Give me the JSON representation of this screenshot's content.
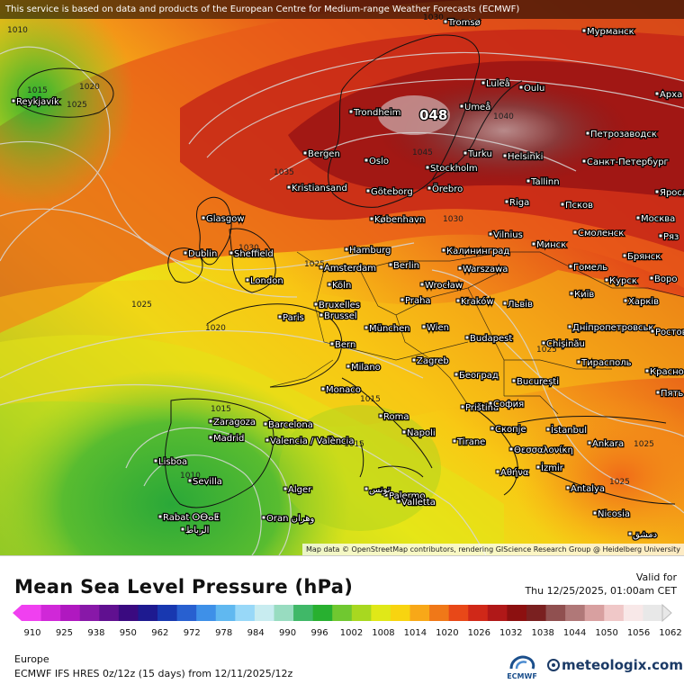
{
  "disclaimer": "This service is based on data and products of the European Centre for Medium-range Weather Forecasts (ECMWF)",
  "attribution": "Map data © OpenStreetMap contributors, rendering GIScience Research Group @ Heidelberg University",
  "legend": {
    "title": "Mean Sea Level Pressure (hPa)",
    "valid_label": "Valid for",
    "valid_time": "Thu 12/25/2025, 01:00am CET",
    "ticks": [
      "910",
      "925",
      "938",
      "950",
      "962",
      "972",
      "978",
      "984",
      "990",
      "996",
      "1002",
      "1008",
      "1014",
      "1020",
      "1026",
      "1032",
      "1038",
      "1044",
      "1050",
      "1056",
      "1062"
    ],
    "colors": [
      "#f040f0",
      "#d028d8",
      "#b018c0",
      "#8818a8",
      "#601090",
      "#3a0a80",
      "#1e1a90",
      "#1838b0",
      "#2860d0",
      "#3e90e8",
      "#60b8f0",
      "#98d8f8",
      "#c8ecf0",
      "#98dcc0",
      "#40b868",
      "#28b030",
      "#70c830",
      "#a8d820",
      "#e0e818",
      "#f8d410",
      "#f8a818",
      "#f07818",
      "#e84818",
      "#d02818",
      "#b01818",
      "#8c1010",
      "#7a2020",
      "#905050",
      "#b07878",
      "#d8a0a0",
      "#f0c8c8",
      "#f8e8e8",
      "#e8e8e8"
    ]
  },
  "footer": {
    "region": "Europe",
    "model": "ECMWF IFS HRES 0z/12z (15 days) from 12/11/2025/12z",
    "ecmwf_logo_text": "ECMWF",
    "brand": "meteologix.com",
    "brand_icon": "meteologix-logo-icon"
  },
  "map": {
    "high_label": "048",
    "isobar_labels": [
      {
        "text": "1010",
        "pos": "top-left"
      },
      {
        "text": "1015",
        "pos": "iceland"
      },
      {
        "text": "1020",
        "pos": "iceland"
      },
      {
        "text": "1025",
        "pos": "reykjavik"
      },
      {
        "text": "1030",
        "pos": "top"
      },
      {
        "text": "1035",
        "pos": "north-sea"
      },
      {
        "text": "1045",
        "pos": "sweden"
      },
      {
        "text": "1040",
        "pos": "helsinki"
      },
      {
        "text": "1030",
        "pos": "kobenhavn"
      },
      {
        "text": "1030",
        "pos": "britain"
      },
      {
        "text": "1025",
        "pos": "amsterdam"
      },
      {
        "text": "1025",
        "pos": "atlantic"
      },
      {
        "text": "1020",
        "pos": "france"
      },
      {
        "text": "1015",
        "pos": "spain"
      },
      {
        "text": "1015",
        "pos": "italy"
      },
      {
        "text": "1015",
        "pos": "sardinia"
      },
      {
        "text": "1010",
        "pos": "portugal"
      },
      {
        "text": "1025",
        "pos": "ukraine"
      },
      {
        "text": "1025",
        "pos": "turkey"
      },
      {
        "text": "1025",
        "pos": "anatolia"
      }
    ],
    "cities": [
      "Tromsø",
      "Мурманск",
      "Reykjavík",
      "Luleå",
      "Oulu",
      "Арха",
      "Trondheim",
      "Umeå",
      "Петрозаводск",
      "Bergen",
      "Oslo",
      "Turku",
      "Helsinki",
      "Санкт-Петербург",
      "Kristiansand",
      "Stockholm",
      "Tallinn",
      "Göteborg",
      "Örebro",
      "Яросл",
      "Glasgow",
      "Riga",
      "Псков",
      "København",
      "Москва",
      "Vilnius",
      "Смоленск",
      "Ряз",
      "Калининград",
      "Минск",
      "Dublin",
      "Sheffield",
      "Hamburg",
      "Брянск",
      "Amsterdam",
      "Berlin",
      "Гомель",
      "Курск",
      "London",
      "Warszawa",
      "Воро",
      "Köln",
      "Wrocław",
      "Київ",
      "Brussel",
      "Bruxelles",
      "Praha",
      "Kraków",
      "Львів",
      "Харків",
      "Paris",
      "München",
      "Wien",
      "Дніпропетровськ",
      "Budapest",
      "Bern",
      "Chișinău",
      "Ростов",
      "Milano",
      "Zagreb",
      "Тирасполь",
      "Monaco",
      "Београд",
      "București",
      "Красно",
      "Пять",
      "Priština",
      "София",
      "Roma",
      "Zaragoza",
      "Barcelona",
      "Napoli",
      "Tirane",
      "Скопје",
      "İstanbul",
      "Madrid",
      "Valencia / València",
      "Θεσσαλονίκη",
      "Ankara",
      "Lisboa",
      "Sevilla",
      "Αθήνα",
      "İzmir",
      "Palermo",
      "Alger",
      "تونس",
      "Antalya",
      "Rabat ⵔⴱⴰⵟ",
      "الرباط",
      "Valletta",
      "Oran وهران",
      "Nicosia",
      "دمشق"
    ]
  }
}
